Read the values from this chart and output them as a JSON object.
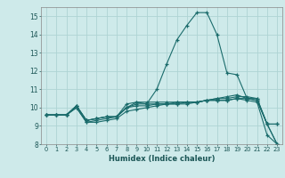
{
  "xlabel": "Humidex (Indice chaleur)",
  "ylabel": "",
  "background_color": "#ceeaea",
  "grid_color": "#aed4d4",
  "line_color": "#1a6b6b",
  "xlim": [
    -0.5,
    23.5
  ],
  "ylim": [
    8,
    15.5
  ],
  "yticks": [
    8,
    9,
    10,
    11,
    12,
    13,
    14,
    15
  ],
  "xticks": [
    0,
    1,
    2,
    3,
    4,
    5,
    6,
    7,
    8,
    9,
    10,
    11,
    12,
    13,
    14,
    15,
    16,
    17,
    18,
    19,
    20,
    21,
    22,
    23
  ],
  "series": [
    {
      "x": [
        0,
        1,
        2,
        3,
        4,
        5,
        6,
        7,
        8,
        9,
        10,
        11,
        12,
        13,
        14,
        15,
        16,
        17,
        18,
        19,
        20,
        21,
        22,
        23
      ],
      "y": [
        9.6,
        9.6,
        9.6,
        10.1,
        9.3,
        9.4,
        9.5,
        9.5,
        10.0,
        10.3,
        10.2,
        11.0,
        12.4,
        13.7,
        14.5,
        15.2,
        15.2,
        14.0,
        11.9,
        11.8,
        10.5,
        10.4,
        9.1,
        9.1
      ]
    },
    {
      "x": [
        0,
        1,
        2,
        3,
        4,
        5,
        6,
        7,
        8,
        9,
        10,
        11,
        12,
        13,
        14,
        15,
        16,
        17,
        18,
        19,
        20,
        21,
        22,
        23
      ],
      "y": [
        9.6,
        9.6,
        9.6,
        10.1,
        9.3,
        9.4,
        9.5,
        9.5,
        10.2,
        10.3,
        10.3,
        10.3,
        10.3,
        10.3,
        10.3,
        10.3,
        10.4,
        10.4,
        10.4,
        10.5,
        10.5,
        10.5,
        9.1,
        8.0
      ]
    },
    {
      "x": [
        0,
        1,
        2,
        3,
        4,
        5,
        6,
        7,
        8,
        9,
        10,
        11,
        12,
        13,
        14,
        15,
        16,
        17,
        18,
        19,
        20,
        21,
        22,
        23
      ],
      "y": [
        9.6,
        9.6,
        9.6,
        10.1,
        9.3,
        9.4,
        9.5,
        9.5,
        10.0,
        10.2,
        10.2,
        10.2,
        10.2,
        10.2,
        10.2,
        10.3,
        10.4,
        10.5,
        10.5,
        10.6,
        10.6,
        10.5,
        9.1,
        9.1
      ]
    },
    {
      "x": [
        0,
        1,
        2,
        3,
        4,
        5,
        6,
        7,
        8,
        9,
        10,
        11,
        12,
        13,
        14,
        15,
        16,
        17,
        18,
        19,
        20,
        21,
        22,
        23
      ],
      "y": [
        9.6,
        9.6,
        9.6,
        10.0,
        9.2,
        9.3,
        9.4,
        9.5,
        10.0,
        10.1,
        10.1,
        10.2,
        10.2,
        10.3,
        10.3,
        10.3,
        10.4,
        10.5,
        10.6,
        10.7,
        10.5,
        10.4,
        9.1,
        8.0
      ]
    },
    {
      "x": [
        0,
        1,
        2,
        3,
        4,
        5,
        6,
        7,
        8,
        9,
        10,
        11,
        12,
        13,
        14,
        15,
        16,
        17,
        18,
        19,
        20,
        21,
        22,
        23
      ],
      "y": [
        9.6,
        9.6,
        9.6,
        10.0,
        9.2,
        9.2,
        9.3,
        9.4,
        9.8,
        9.9,
        10.0,
        10.1,
        10.2,
        10.2,
        10.3,
        10.3,
        10.4,
        10.4,
        10.4,
        10.5,
        10.4,
        10.3,
        8.5,
        8.0
      ]
    }
  ]
}
